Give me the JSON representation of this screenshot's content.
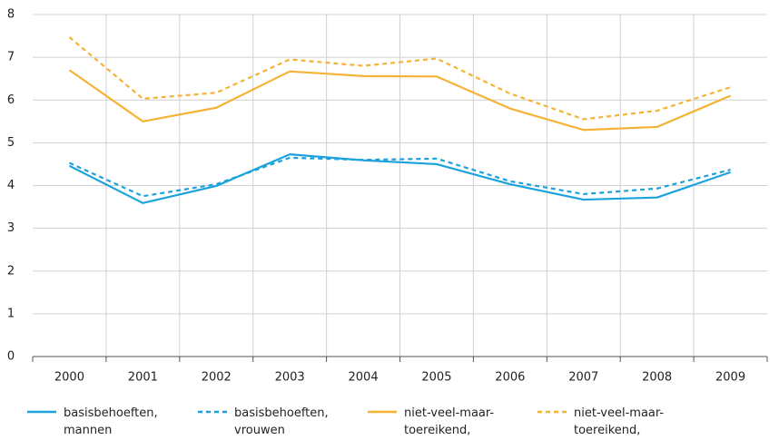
{
  "chart_data": {
    "type": "line",
    "categories": [
      "2000",
      "2001",
      "2002",
      "2003",
      "2004",
      "2005",
      "2006",
      "2007",
      "2008",
      "2009"
    ],
    "series": [
      {
        "name": "basisbehoeften, mannen",
        "color": "#1ba2dc",
        "dashed": false,
        "values": [
          4.46,
          3.59,
          3.99,
          4.73,
          4.59,
          4.5,
          4.03,
          3.67,
          3.72,
          4.31
        ]
      },
      {
        "name": "basisbehoeften, vrouwen",
        "color": "#1ba2dc",
        "dashed": true,
        "values": [
          4.53,
          3.75,
          4.03,
          4.65,
          4.6,
          4.63,
          4.1,
          3.8,
          3.93,
          4.37
        ]
      },
      {
        "name": "niet-veel-maar-toereikend, mannen",
        "color": "#f5b335",
        "dashed": false,
        "values": [
          6.7,
          5.5,
          5.82,
          6.67,
          6.56,
          6.55,
          5.8,
          5.3,
          5.37,
          6.1
        ]
      },
      {
        "name": "niet-veel-maar-toereikend, vrouwen",
        "color": "#f5b335",
        "dashed": true,
        "values": [
          7.47,
          6.03,
          6.17,
          6.95,
          6.8,
          6.97,
          6.15,
          5.55,
          5.75,
          6.3
        ]
      }
    ],
    "ylim": [
      0,
      8
    ],
    "yticks": [
      0,
      1,
      2,
      3,
      4,
      5,
      6,
      7,
      8
    ],
    "grid": true
  }
}
